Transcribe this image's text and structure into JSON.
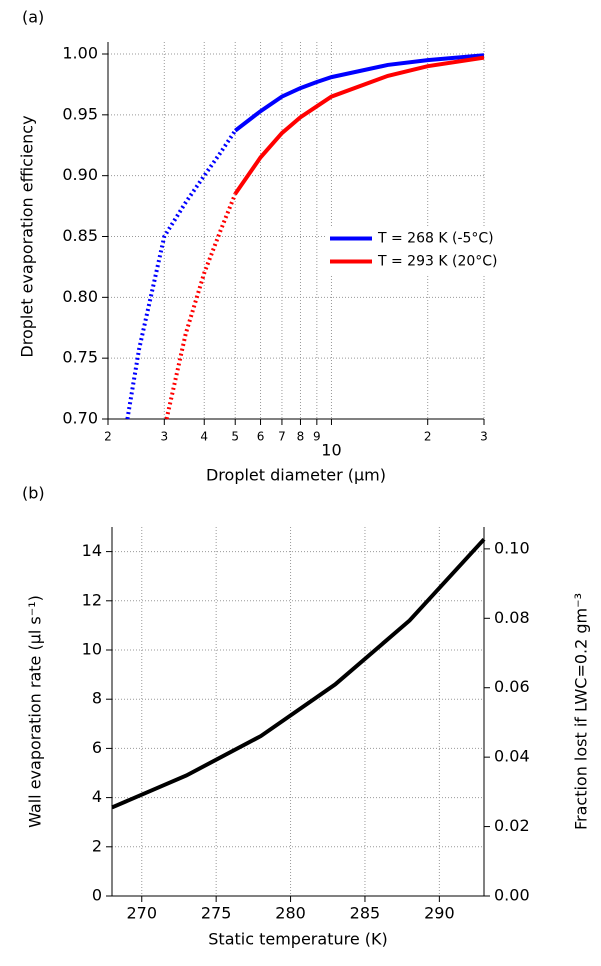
{
  "chart_data": [
    {
      "type": "line",
      "panel_label": "(a)",
      "x_label": "Droplet diameter (μm)",
      "y_label": "Droplet evaporation efficiency",
      "log_x": true,
      "grid": true,
      "legend": "right",
      "xlim": [
        2,
        30
      ],
      "xticks": [
        2,
        3,
        4,
        5,
        6,
        7,
        8,
        9,
        10,
        {
          "value": 20,
          "label": "2"
        },
        {
          "value": 30,
          "label": "3"
        }
      ],
      "ylim": [
        0.7,
        1.0
      ],
      "yticks": [
        {
          "value": 0.7,
          "label": "0.70"
        },
        {
          "value": 0.75,
          "label": "0.75"
        },
        {
          "value": 0.8,
          "label": "0.80"
        },
        {
          "value": 0.85,
          "label": "0.85"
        },
        {
          "value": 0.9,
          "label": "0.90"
        },
        {
          "value": 0.95,
          "label": "0.95"
        },
        {
          "value": 1.0,
          "label": "1.00"
        }
      ],
      "series": [
        {
          "name": "T = 268 K (-5°C)",
          "color": "#0000ff",
          "segments": [
            {
              "style": "dotted",
              "x": [
                2.3,
                2.5,
                3,
                3.5,
                4,
                4.5,
                5
              ],
              "values": [
                0.7,
                0.757,
                0.85,
                0.878,
                0.9,
                0.919,
                0.937
              ]
            },
            {
              "style": "solid",
              "x": [
                5,
                6,
                7,
                8,
                9,
                10,
                15,
                20,
                30
              ],
              "values": [
                0.937,
                0.953,
                0.965,
                0.972,
                0.977,
                0.981,
                0.991,
                0.995,
                0.999
              ]
            }
          ]
        },
        {
          "name": "T = 293 K (20°C)",
          "color": "#ff0000",
          "segments": [
            {
              "style": "dotted",
              "x": [
                3.05,
                3.5,
                4,
                4.5,
                5
              ],
              "values": [
                0.7,
                0.77,
                0.82,
                0.855,
                0.885
              ]
            },
            {
              "style": "solid",
              "x": [
                5,
                6,
                7,
                8,
                9,
                10,
                15,
                20,
                30
              ],
              "values": [
                0.885,
                0.915,
                0.935,
                0.948,
                0.957,
                0.965,
                0.982,
                0.99,
                0.997
              ]
            }
          ]
        }
      ]
    },
    {
      "type": "line",
      "panel_label": "(b)",
      "x_label": "Static  temperature (K)",
      "y_label": "Wall evaporation  rate (μl s⁻¹)",
      "y2_label": "Fraction lost if LWC=0.2 gm⁻³",
      "grid": true,
      "xlim": [
        268,
        293
      ],
      "xticks": [
        270,
        275,
        280,
        285,
        290
      ],
      "ylim": [
        0,
        15
      ],
      "yticks": [
        0,
        2,
        4,
        6,
        8,
        10,
        12,
        14
      ],
      "y2lim": [
        0,
        0.1063
      ],
      "y2ticks": [
        {
          "value": 0,
          "label": "0.00"
        },
        {
          "value": 0.02,
          "label": "0.02"
        },
        {
          "value": 0.04,
          "label": "0.04"
        },
        {
          "value": 0.06,
          "label": "0.06"
        },
        {
          "value": 0.08,
          "label": "0.08"
        },
        {
          "value": 0.1,
          "label": "0.10"
        }
      ],
      "series": [
        {
          "color": "#000000",
          "segments": [
            {
              "style": "solid",
              "x": [
                268,
                273,
                278,
                283,
                288,
                293
              ],
              "values": [
                3.6,
                4.9,
                6.5,
                8.6,
                11.2,
                14.5
              ]
            }
          ]
        }
      ]
    }
  ]
}
